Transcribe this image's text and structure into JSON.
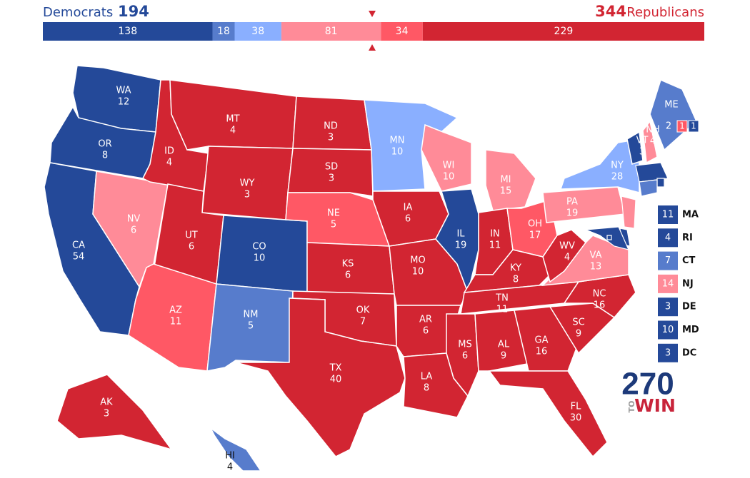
{
  "header": {
    "dem_label": "Democrats",
    "dem_total": 194,
    "rep_total": 344,
    "rep_label": "Republicans"
  },
  "tally": [
    {
      "value": 138,
      "color": "#244999"
    },
    {
      "value": 18,
      "color": "#577ccc"
    },
    {
      "value": 38,
      "color": "#8aafff"
    },
    {
      "value": 81,
      "color": "#ff8b98"
    },
    {
      "value": 34,
      "color": "#ff5865"
    },
    {
      "value": 229,
      "color": "#d22532"
    }
  ],
  "states": [
    {
      "abbr": "WA",
      "votes": 12,
      "color": "#244999"
    },
    {
      "abbr": "OR",
      "votes": 8,
      "color": "#244999"
    },
    {
      "abbr": "CA",
      "votes": 54,
      "color": "#244999"
    },
    {
      "abbr": "NV",
      "votes": 6,
      "color": "#ff8b98"
    },
    {
      "abbr": "ID",
      "votes": 4,
      "color": "#d22532"
    },
    {
      "abbr": "MT",
      "votes": 4,
      "color": "#d22532"
    },
    {
      "abbr": "WY",
      "votes": 3,
      "color": "#d22532"
    },
    {
      "abbr": "UT",
      "votes": 6,
      "color": "#d22532"
    },
    {
      "abbr": "AZ",
      "votes": 11,
      "color": "#ff5865"
    },
    {
      "abbr": "CO",
      "votes": 10,
      "color": "#244999"
    },
    {
      "abbr": "NM",
      "votes": 5,
      "color": "#577ccc"
    },
    {
      "abbr": "ND",
      "votes": 3,
      "color": "#d22532"
    },
    {
      "abbr": "SD",
      "votes": 3,
      "color": "#d22532"
    },
    {
      "abbr": "NE",
      "votes": 5,
      "color": "#ff5865"
    },
    {
      "abbr": "KS",
      "votes": 6,
      "color": "#d22532"
    },
    {
      "abbr": "OK",
      "votes": 7,
      "color": "#d22532"
    },
    {
      "abbr": "TX",
      "votes": 40,
      "color": "#d22532"
    },
    {
      "abbr": "MN",
      "votes": 10,
      "color": "#8aafff"
    },
    {
      "abbr": "IA",
      "votes": 6,
      "color": "#d22532"
    },
    {
      "abbr": "MO",
      "votes": 10,
      "color": "#d22532"
    },
    {
      "abbr": "AR",
      "votes": 6,
      "color": "#d22532"
    },
    {
      "abbr": "LA",
      "votes": 8,
      "color": "#d22532"
    },
    {
      "abbr": "WI",
      "votes": 10,
      "color": "#ff8b98"
    },
    {
      "abbr": "IL",
      "votes": 19,
      "color": "#244999"
    },
    {
      "abbr": "MI",
      "votes": 15,
      "color": "#ff8b98"
    },
    {
      "abbr": "IN",
      "votes": 11,
      "color": "#d22532"
    },
    {
      "abbr": "OH",
      "votes": 17,
      "color": "#ff5865"
    },
    {
      "abbr": "KY",
      "votes": 8,
      "color": "#d22532"
    },
    {
      "abbr": "TN",
      "votes": 11,
      "color": "#d22532"
    },
    {
      "abbr": "MS",
      "votes": 6,
      "color": "#d22532"
    },
    {
      "abbr": "AL",
      "votes": 9,
      "color": "#d22532"
    },
    {
      "abbr": "GA",
      "votes": 16,
      "color": "#d22532"
    },
    {
      "abbr": "FL",
      "votes": 30,
      "color": "#d22532"
    },
    {
      "abbr": "SC",
      "votes": 9,
      "color": "#d22532"
    },
    {
      "abbr": "NC",
      "votes": 16,
      "color": "#d22532"
    },
    {
      "abbr": "VA",
      "votes": 13,
      "color": "#ff8b98"
    },
    {
      "abbr": "WV",
      "votes": 4,
      "color": "#d22532"
    },
    {
      "abbr": "PA",
      "votes": 19,
      "color": "#ff8b98"
    },
    {
      "abbr": "NY",
      "votes": 28,
      "color": "#8aafff"
    },
    {
      "abbr": "VT",
      "votes": 3,
      "color": "#244999"
    },
    {
      "abbr": "NH",
      "votes": 4,
      "color": "#ff8b98"
    },
    {
      "abbr": "ME",
      "votes": 2,
      "color": "#577ccc",
      "districts": [
        {
          "votes": 1,
          "color": "#ff5865"
        },
        {
          "votes": 1,
          "color": "#244999"
        }
      ]
    },
    {
      "abbr": "AK",
      "votes": 3,
      "color": "#d22532"
    },
    {
      "abbr": "HI",
      "votes": 4,
      "color": "#577ccc"
    }
  ],
  "small_states": [
    {
      "abbr": "MA",
      "votes": 11,
      "color": "#244999"
    },
    {
      "abbr": "RI",
      "votes": 4,
      "color": "#244999"
    },
    {
      "abbr": "CT",
      "votes": 7,
      "color": "#577ccc"
    },
    {
      "abbr": "NJ",
      "votes": 14,
      "color": "#ff8b98"
    },
    {
      "abbr": "DE",
      "votes": 3,
      "color": "#244999"
    },
    {
      "abbr": "MD",
      "votes": 10,
      "color": "#244999"
    },
    {
      "abbr": "DC",
      "votes": 3,
      "color": "#244999"
    }
  ],
  "logo": {
    "number": "270",
    "to": "TO",
    "win": "WIN"
  }
}
